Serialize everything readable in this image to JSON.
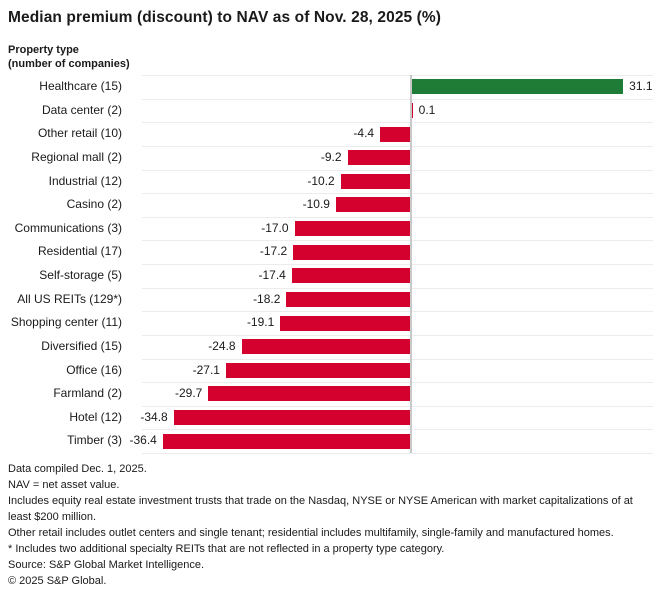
{
  "header": {
    "title": "Median premium (discount) to NAV as of Nov. 28, 2025 (%)",
    "axis_label_line1": "Property type",
    "axis_label_line2": "(number of companies)"
  },
  "chart_data": {
    "type": "bar",
    "orientation": "horizontal",
    "title": "Median premium (discount) to NAV as of Nov. 28, 2025 (%)",
    "ylabel": "Property type (number of companies)",
    "xlabel": "",
    "categories": [
      "Healthcare (15)",
      "Data center (2)",
      "Other retail (10)",
      "Regional mall (2)",
      "Industrial (12)",
      "Casino (2)",
      "Communications (3)",
      "Residential (17)",
      "Self-storage (5)",
      "All US REITs (129*)",
      "Shopping center (11)",
      "Diversified (15)",
      "Office (16)",
      "Farmland (2)",
      "Hotel (12)",
      "Timber (3)"
    ],
    "values": [
      31.1,
      0.1,
      -4.4,
      -9.2,
      -10.2,
      -10.9,
      -17.0,
      -17.2,
      -17.4,
      -18.2,
      -19.1,
      -24.8,
      -27.1,
      -29.7,
      -34.8,
      -36.4
    ],
    "value_labels": [
      "31.1",
      "0.1",
      "-4.4",
      "-9.2",
      "-10.2",
      "-10.9",
      "-17.0",
      "-17.2",
      "-17.4",
      "-18.2",
      "-19.1",
      "-24.8",
      "-27.1",
      "-29.7",
      "-34.8",
      "-36.4"
    ],
    "bar_colors": [
      "#1f7c36",
      "#d4012f",
      "#d4012f",
      "#d4012f",
      "#d4012f",
      "#d4012f",
      "#d4012f",
      "#d4012f",
      "#d4012f",
      "#d4012f",
      "#d4012f",
      "#d4012f",
      "#d4012f",
      "#d4012f",
      "#d4012f",
      "#d4012f"
    ],
    "xlim": [
      -39.6,
      36.6
    ],
    "grid": "row-separators",
    "zero_line": true,
    "legend": "none"
  },
  "colors": {
    "positive_bar": "#1f7c36",
    "negative_bar": "#d4012f",
    "gridline": "#ececec",
    "zero_line": "#c8c8c8",
    "text": "#1a1a1a",
    "background": "#ffffff"
  },
  "footnotes": [
    "Data compiled Dec. 1, 2025.",
    "NAV = net asset value.",
    "Includes equity real estate investment trusts that trade on the Nasdaq, NYSE or NYSE American with market capitalizations of at least $200 million.",
    "Other retail includes outlet centers and single tenant; residential includes multifamily, single-family and manufactured homes.",
    "* Includes two additional specialty REITs that are not reflected in a property type category.",
    "Source: S&P Global Market Intelligence.",
    "© 2025 S&P Global."
  ]
}
